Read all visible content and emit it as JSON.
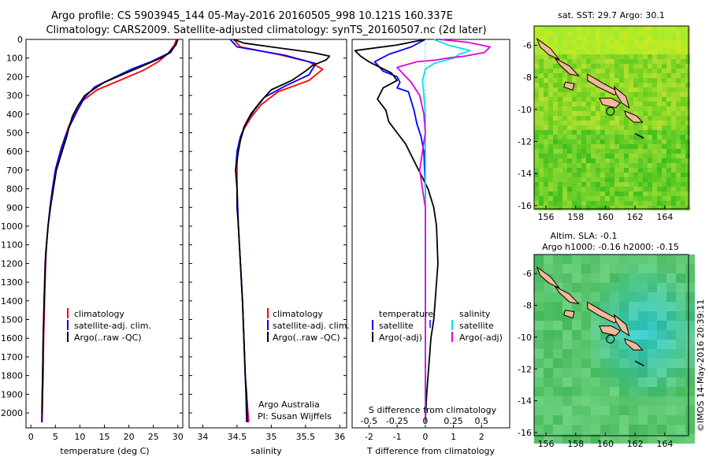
{
  "header": {
    "line1": "Argo profile: CS 5903945_144 05-May-2016 20160505_998 10.121S 160.337E",
    "line2": "Climatology: CARS2009. Satellite-adjusted climatology: synTS_20160507.nc (2d later)"
  },
  "credit": {
    "org": "Argo Australia",
    "pi": "PI: Susan Wijffels",
    "stamp": "©IMOS 14-May-2016 20:39:11"
  },
  "colors": {
    "climatology": "#ff0000",
    "satellite": "#0000ff",
    "argo": "#000000",
    "satellite_s": "#00e5e5",
    "argo_s": "#e000e0",
    "land": "#f2b89a"
  },
  "chart_data": [
    {
      "type": "line",
      "id": "temperature",
      "xlabel": "temperature (deg C)",
      "xlim": [
        -1,
        31
      ],
      "xticks": [
        0,
        5,
        10,
        15,
        20,
        25,
        30
      ],
      "ylim": [
        2080,
        0
      ],
      "yticks": [
        0,
        100,
        200,
        300,
        400,
        500,
        600,
        700,
        800,
        900,
        1000,
        1100,
        1200,
        1300,
        1400,
        1500,
        1600,
        1700,
        1800,
        1900,
        2000
      ],
      "legend": [
        "climatology",
        "satellite-adj. clim.",
        "Argo(..raw -QC)"
      ],
      "series": [
        {
          "name": "climatology",
          "color": "#ff0000",
          "x": [
            29.7,
            29.3,
            28.0,
            26.0,
            23.0,
            18.5,
            13.5,
            10.5,
            9.0,
            7.8,
            7.0,
            6.2,
            5.6,
            5.0,
            4.4,
            3.9,
            3.5,
            3.2,
            3.0,
            2.8,
            2.7,
            2.6,
            2.5,
            2.4,
            2.3
          ],
          "y": [
            0,
            30,
            75,
            120,
            165,
            215,
            270,
            330,
            400,
            460,
            520,
            580,
            640,
            700,
            800,
            900,
            1000,
            1100,
            1200,
            1400,
            1500,
            1600,
            1800,
            1900,
            2050
          ]
        },
        {
          "name": "satellite-adj. clim.",
          "color": "#0000ff",
          "x": [
            30.0,
            29.6,
            28.0,
            24.5,
            20.5,
            16.5,
            13.0,
            11.0,
            9.5,
            8.0,
            7.0,
            6.3,
            5.6,
            5.0,
            4.4,
            3.9,
            3.5,
            3.2,
            2.9,
            2.7,
            2.6,
            2.5,
            2.4,
            2.3,
            2.2
          ],
          "y": [
            0,
            30,
            75,
            120,
            160,
            210,
            255,
            310,
            380,
            460,
            520,
            580,
            640,
            700,
            800,
            900,
            1000,
            1100,
            1200,
            1400,
            1500,
            1600,
            1800,
            1900,
            2050
          ]
        },
        {
          "name": "Argo(..raw -QC)",
          "color": "#000000",
          "x": [
            30.0,
            29.5,
            28.5,
            26.5,
            23.0,
            19.0,
            15.0,
            13.5,
            11.0,
            9.5,
            8.5,
            7.8,
            7.2,
            6.6,
            5.9,
            5.2,
            4.6,
            4.0,
            3.5,
            3.0,
            2.7,
            2.5,
            2.4,
            2.3
          ],
          "y": [
            0,
            30,
            70,
            100,
            140,
            185,
            230,
            255,
            300,
            360,
            410,
            470,
            530,
            580,
            640,
            700,
            800,
            900,
            1000,
            1150,
            1400,
            1600,
            1800,
            2000
          ]
        }
      ]
    },
    {
      "type": "line",
      "id": "salinity",
      "xlabel": "salinity",
      "xlim": [
        33.8,
        36.1
      ],
      "xticks": [
        34,
        34.5,
        35,
        35.5,
        36
      ],
      "ylim": [
        2080,
        0
      ],
      "legend": [
        "climatology",
        "satellite-adj. clim.",
        "Argo(..raw -QC)"
      ],
      "series": [
        {
          "name": "climatology",
          "color": "#ff0000",
          "x": [
            34.45,
            34.55,
            35.1,
            35.55,
            35.75,
            35.55,
            35.1,
            34.85,
            34.7,
            34.6,
            34.55,
            34.5,
            34.5,
            34.5,
            34.52,
            34.55,
            34.58,
            34.6,
            34.62,
            34.64,
            34.66,
            34.67
          ],
          "y": [
            0,
            40,
            80,
            120,
            160,
            220,
            280,
            350,
            420,
            480,
            540,
            600,
            700,
            800,
            1000,
            1200,
            1400,
            1600,
            1800,
            1900,
            2000,
            2050
          ]
        },
        {
          "name": "satellite-adj. clim.",
          "color": "#0000ff",
          "x": [
            34.4,
            34.5,
            35.2,
            35.65,
            35.55,
            35.2,
            34.9,
            34.75,
            34.63,
            34.55,
            34.5,
            34.48,
            34.5,
            34.52,
            34.55,
            34.58,
            34.6,
            34.62,
            34.63,
            34.64
          ],
          "y": [
            0,
            40,
            85,
            130,
            190,
            250,
            310,
            380,
            450,
            520,
            600,
            700,
            800,
            1000,
            1200,
            1400,
            1600,
            1800,
            1900,
            2050
          ]
        },
        {
          "name": "Argo(..raw -QC)",
          "color": "#000000",
          "x": [
            34.45,
            34.6,
            35.0,
            35.6,
            35.85,
            35.8,
            35.6,
            35.5,
            35.3,
            35.0,
            34.85,
            34.7,
            34.6,
            34.55,
            34.52,
            34.5,
            34.48,
            34.5,
            34.5,
            34.52,
            34.55,
            34.58,
            34.6,
            34.62,
            34.64,
            34.65
          ],
          "y": [
            0,
            20,
            40,
            70,
            90,
            110,
            140,
            170,
            220,
            270,
            330,
            400,
            470,
            540,
            600,
            650,
            700,
            800,
            900,
            1000,
            1200,
            1400,
            1600,
            1800,
            1900,
            2050
          ]
        }
      ]
    },
    {
      "type": "line",
      "id": "difference",
      "xlabel": "T difference from climatology",
      "xlabel2": "S difference from climatology",
      "xlim": [
        -2.6,
        3.0
      ],
      "xticks": [
        -2,
        -1,
        0,
        1,
        2
      ],
      "xticklabels": [
        "-2",
        "-1",
        "0",
        "1",
        "2"
      ],
      "xticks2": [
        -2,
        -1,
        0,
        1,
        2
      ],
      "xticklabels2": [
        "-0.5",
        "-0.25",
        "0",
        "0.25",
        "0.5"
      ],
      "ylim": [
        2080,
        0
      ],
      "legend_headers": [
        "temperature",
        "salinity"
      ],
      "legend": [
        "satellite",
        "Argo(-adj)",
        "satellite",
        "Argo(-adj)"
      ],
      "series": [
        {
          "name": "satellite",
          "group": "temperature",
          "color": "#0000ff",
          "x": [
            0.0,
            -0.5,
            -1.3,
            -1.8,
            -1.5,
            -1.0,
            -0.9,
            -1.0,
            -0.6,
            -0.5,
            -0.4,
            -0.3,
            -0.15,
            -0.05,
            0.0,
            0.0,
            0.0
          ],
          "y": [
            0,
            40,
            80,
            120,
            170,
            200,
            230,
            260,
            280,
            330,
            380,
            450,
            520,
            600,
            800,
            1200,
            2050
          ]
        },
        {
          "name": "Argo(-adj)",
          "group": "temperature",
          "color": "#000000",
          "x": [
            0.0,
            -1.0,
            -2.5,
            -2.3,
            -2.0,
            -1.6,
            -1.2,
            -1.0,
            -1.5,
            -1.7,
            -1.4,
            -1.3,
            -1.0,
            -0.7,
            -0.5,
            -0.3,
            -0.1,
            0.1,
            0.3,
            0.4,
            0.45,
            0.35,
            0.3,
            0.2,
            0.1,
            0.05,
            0.0
          ],
          "y": [
            0,
            30,
            60,
            90,
            120,
            150,
            180,
            220,
            260,
            320,
            380,
            440,
            500,
            560,
            620,
            680,
            740,
            800,
            900,
            1000,
            1200,
            1400,
            1500,
            1600,
            1800,
            1900,
            2050
          ]
        },
        {
          "name": "satellite",
          "group": "salinity",
          "color": "#00e5e5",
          "x": [
            0.3,
            0.8,
            1.6,
            1.2,
            1.0,
            0.3,
            0.0,
            -0.1,
            -0.05,
            0.0,
            0.0,
            0.0,
            0.0,
            0.0
          ],
          "y": [
            0,
            30,
            60,
            80,
            100,
            130,
            160,
            220,
            300,
            400,
            600,
            1000,
            1500,
            2050
          ]
        },
        {
          "name": "Argo(-adj)",
          "group": "salinity",
          "color": "#e000e0",
          "x": [
            0.5,
            1.5,
            2.3,
            2.1,
            1.4,
            0.8,
            0.4,
            -0.3,
            -1.0,
            -0.5,
            -0.2,
            -0.05,
            0.0,
            -0.1,
            -0.2,
            -0.1,
            0.0,
            0.0
          ],
          "y": [
            0,
            15,
            40,
            70,
            90,
            100,
            110,
            120,
            150,
            230,
            300,
            400,
            500,
            600,
            700,
            800,
            900,
            2050
          ]
        }
      ]
    },
    {
      "type": "heatmap",
      "id": "sst-map",
      "title": "sat. SST: 29.7 Argo: 30.1",
      "xlim": [
        155.2,
        165.6
      ],
      "ylim": [
        -16.2,
        -4.8
      ],
      "xticks": [
        156,
        158,
        160,
        162,
        164
      ],
      "yticks": [
        -6,
        -8,
        -10,
        -12,
        -14,
        -16
      ],
      "profile_location": [
        160.337,
        -10.121
      ]
    },
    {
      "type": "heatmap",
      "id": "sla-map",
      "title": "Altim. SLA: -0.1",
      "subtitle": "Argo h1000: -0.16 h2000: -0.15",
      "xlim": [
        155.2,
        165.6
      ],
      "ylim": [
        -16.2,
        -4.8
      ],
      "xticks": [
        156,
        158,
        160,
        162,
        164
      ],
      "yticks": [
        -6,
        -8,
        -10,
        -12,
        -14,
        -16
      ],
      "profile_location": [
        160.337,
        -10.121
      ]
    }
  ]
}
